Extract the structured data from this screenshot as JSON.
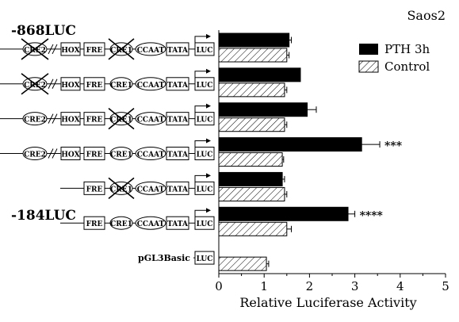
{
  "chart_data": {
    "type": "bar",
    "orientation": "horizontal",
    "title": "Saos2",
    "xlabel": "Relative Luciferase Activity",
    "xlim": [
      0,
      5
    ],
    "x_ticks": [
      "0",
      "1",
      "2",
      "3",
      "4",
      "5"
    ],
    "legend_position": "top-right",
    "series": [
      {
        "name": "PTH 3h",
        "color": "#000000",
        "pattern": "solid",
        "values": [
          1.55,
          1.8,
          1.95,
          3.15,
          1.4,
          2.85,
          null
        ],
        "errors": [
          0.05,
          0.0,
          0.2,
          0.4,
          0.05,
          0.15,
          null
        ]
      },
      {
        "name": "Control",
        "color": "#ffffff",
        "pattern": "hatched",
        "values": [
          1.5,
          1.45,
          1.45,
          1.4,
          1.45,
          1.5,
          1.05
        ],
        "errors": [
          0.05,
          0.05,
          0.05,
          0.03,
          0.05,
          0.1,
          0.05
        ]
      }
    ],
    "significance": [
      "",
      "",
      "",
      "***",
      "",
      "****",
      ""
    ],
    "constructs": [
      {
        "label": "-868LUC",
        "elements": [
          "CRE2",
          "HOX",
          "FRE",
          "CRE1",
          "CCAAT",
          "TATA",
          "LUC"
        ],
        "crossed": [
          "CRE2",
          "CRE1"
        ],
        "break": true
      },
      {
        "label": "",
        "elements": [
          "CRE2",
          "HOX",
          "FRE",
          "CRE1",
          "CCAAT",
          "TATA",
          "LUC"
        ],
        "crossed": [
          "CRE2"
        ],
        "break": true
      },
      {
        "label": "",
        "elements": [
          "CRE2",
          "HOX",
          "FRE",
          "CRE1",
          "CCAAT",
          "TATA",
          "LUC"
        ],
        "crossed": [
          "CRE1"
        ],
        "break": true
      },
      {
        "label": "",
        "elements": [
          "CRE2",
          "HOX",
          "FRE",
          "CRE1",
          "CCAAT",
          "TATA",
          "LUC"
        ],
        "crossed": [],
        "break": true
      },
      {
        "label": "",
        "elements": [
          "FRE",
          "CRE1",
          "CCAAT",
          "TATA",
          "LUC"
        ],
        "crossed": [
          "CRE1"
        ],
        "break": false
      },
      {
        "label": "-184LUC",
        "elements": [
          "FRE",
          "CRE1",
          "CCAAT",
          "TATA",
          "LUC"
        ],
        "crossed": [],
        "break": false
      },
      {
        "label": "pGL3Basic",
        "elements": [
          "LUC"
        ],
        "crossed": [],
        "break": false
      }
    ]
  }
}
